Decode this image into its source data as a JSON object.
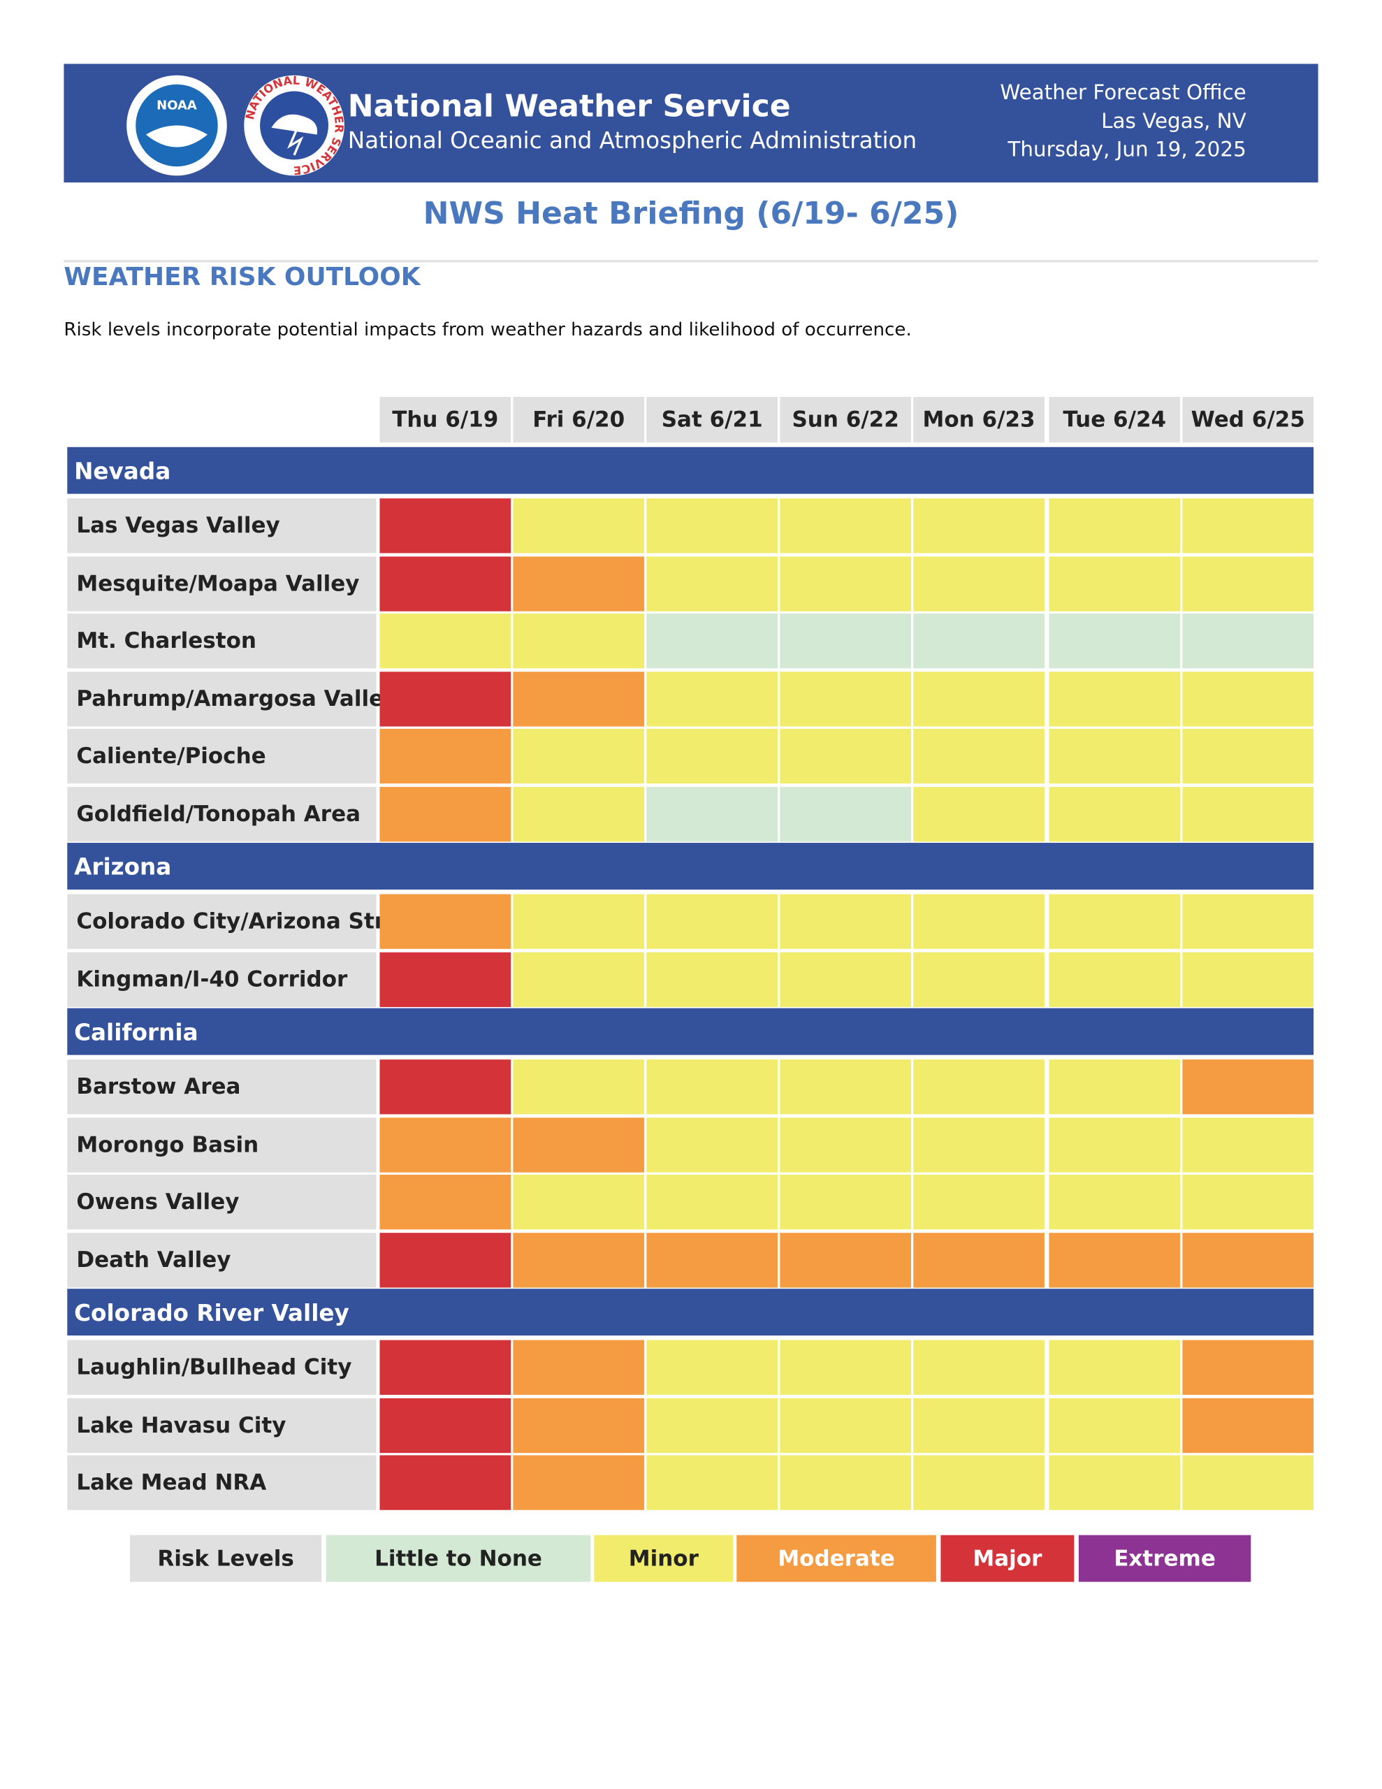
{
  "header": {
    "agency": "National Weather Service",
    "parent": "National Oceanic and Atmospheric Administration",
    "logos": [
      "NOAA",
      "NATIONAL WEATHER SERVICE"
    ],
    "office": [
      "Weather Forecast Office",
      "Las Vegas, NV",
      "Thursday, Jun 19, 2025"
    ]
  },
  "title": "NWS Heat Briefing (6/19- 6/25)",
  "section": "WEATHER RISK OUTLOOK",
  "description": "Risk levels incorporate potential impacts from weather hazards and likelihood of occurrence.",
  "table": {
    "days": [
      "Thu 6/19",
      "Fri 6/20",
      "Sat 6/21",
      "Sun 6/22",
      "Mon 6/23",
      "Tue 6/24",
      "Wed 6/25"
    ],
    "groups": [
      {
        "name": "Nevada",
        "rows": [
          {
            "label": "Las Vegas Valley",
            "levels": [
              "Major",
              "Minor",
              "Minor",
              "Minor",
              "Minor",
              "Minor",
              "Minor"
            ]
          },
          {
            "label": "Mesquite/Moapa Valley",
            "levels": [
              "Major",
              "Moderate",
              "Minor",
              "Minor",
              "Minor",
              "Minor",
              "Minor"
            ]
          },
          {
            "label": "Mt. Charleston",
            "levels": [
              "Minor",
              "Minor",
              "Little to None",
              "Little to None",
              "Little to None",
              "Little to None",
              "Little to None"
            ]
          },
          {
            "label": "Pahrump/Amargosa Valley",
            "levels": [
              "Major",
              "Moderate",
              "Minor",
              "Minor",
              "Minor",
              "Minor",
              "Minor"
            ]
          },
          {
            "label": "Caliente/Pioche",
            "levels": [
              "Moderate",
              "Minor",
              "Minor",
              "Minor",
              "Minor",
              "Minor",
              "Minor"
            ]
          },
          {
            "label": "Goldfield/Tonopah Area",
            "levels": [
              "Moderate",
              "Minor",
              "Little to None",
              "Little to None",
              "Minor",
              "Minor",
              "Minor"
            ]
          }
        ]
      },
      {
        "name": "Arizona",
        "rows": [
          {
            "label": "Colorado City/Arizona Strip",
            "levels": [
              "Moderate",
              "Minor",
              "Minor",
              "Minor",
              "Minor",
              "Minor",
              "Minor"
            ]
          },
          {
            "label": "Kingman/I-40 Corridor",
            "levels": [
              "Major",
              "Minor",
              "Minor",
              "Minor",
              "Minor",
              "Minor",
              "Minor"
            ]
          }
        ]
      },
      {
        "name": "California",
        "rows": [
          {
            "label": "Barstow Area",
            "levels": [
              "Major",
              "Minor",
              "Minor",
              "Minor",
              "Minor",
              "Minor",
              "Moderate"
            ]
          },
          {
            "label": "Morongo Basin",
            "levels": [
              "Moderate",
              "Moderate",
              "Minor",
              "Minor",
              "Minor",
              "Minor",
              "Minor"
            ]
          },
          {
            "label": "Owens Valley",
            "levels": [
              "Moderate",
              "Minor",
              "Minor",
              "Minor",
              "Minor",
              "Minor",
              "Minor"
            ]
          },
          {
            "label": "Death Valley",
            "levels": [
              "Major",
              "Moderate",
              "Moderate",
              "Moderate",
              "Moderate",
              "Moderate",
              "Moderate"
            ]
          }
        ]
      },
      {
        "name": "Colorado River Valley",
        "rows": [
          {
            "label": "Laughlin/Bullhead City",
            "levels": [
              "Major",
              "Moderate",
              "Minor",
              "Minor",
              "Minor",
              "Minor",
              "Moderate"
            ]
          },
          {
            "label": "Lake Havasu City",
            "levels": [
              "Major",
              "Moderate",
              "Minor",
              "Minor",
              "Minor",
              "Minor",
              "Moderate"
            ]
          },
          {
            "label": "Lake Mead NRA",
            "levels": [
              "Major",
              "Moderate",
              "Minor",
              "Minor",
              "Minor",
              "Minor",
              "Minor"
            ]
          }
        ]
      }
    ]
  },
  "legend": {
    "title": "Risk Levels",
    "levels": [
      {
        "name": "Little to None",
        "color": "#d3e9d4"
      },
      {
        "name": "Minor",
        "color": "#f1ec6c"
      },
      {
        "name": "Moderate",
        "color": "#f59b41"
      },
      {
        "name": "Major",
        "color": "#d43439"
      },
      {
        "name": "Extreme",
        "color": "#8c3393"
      }
    ]
  }
}
